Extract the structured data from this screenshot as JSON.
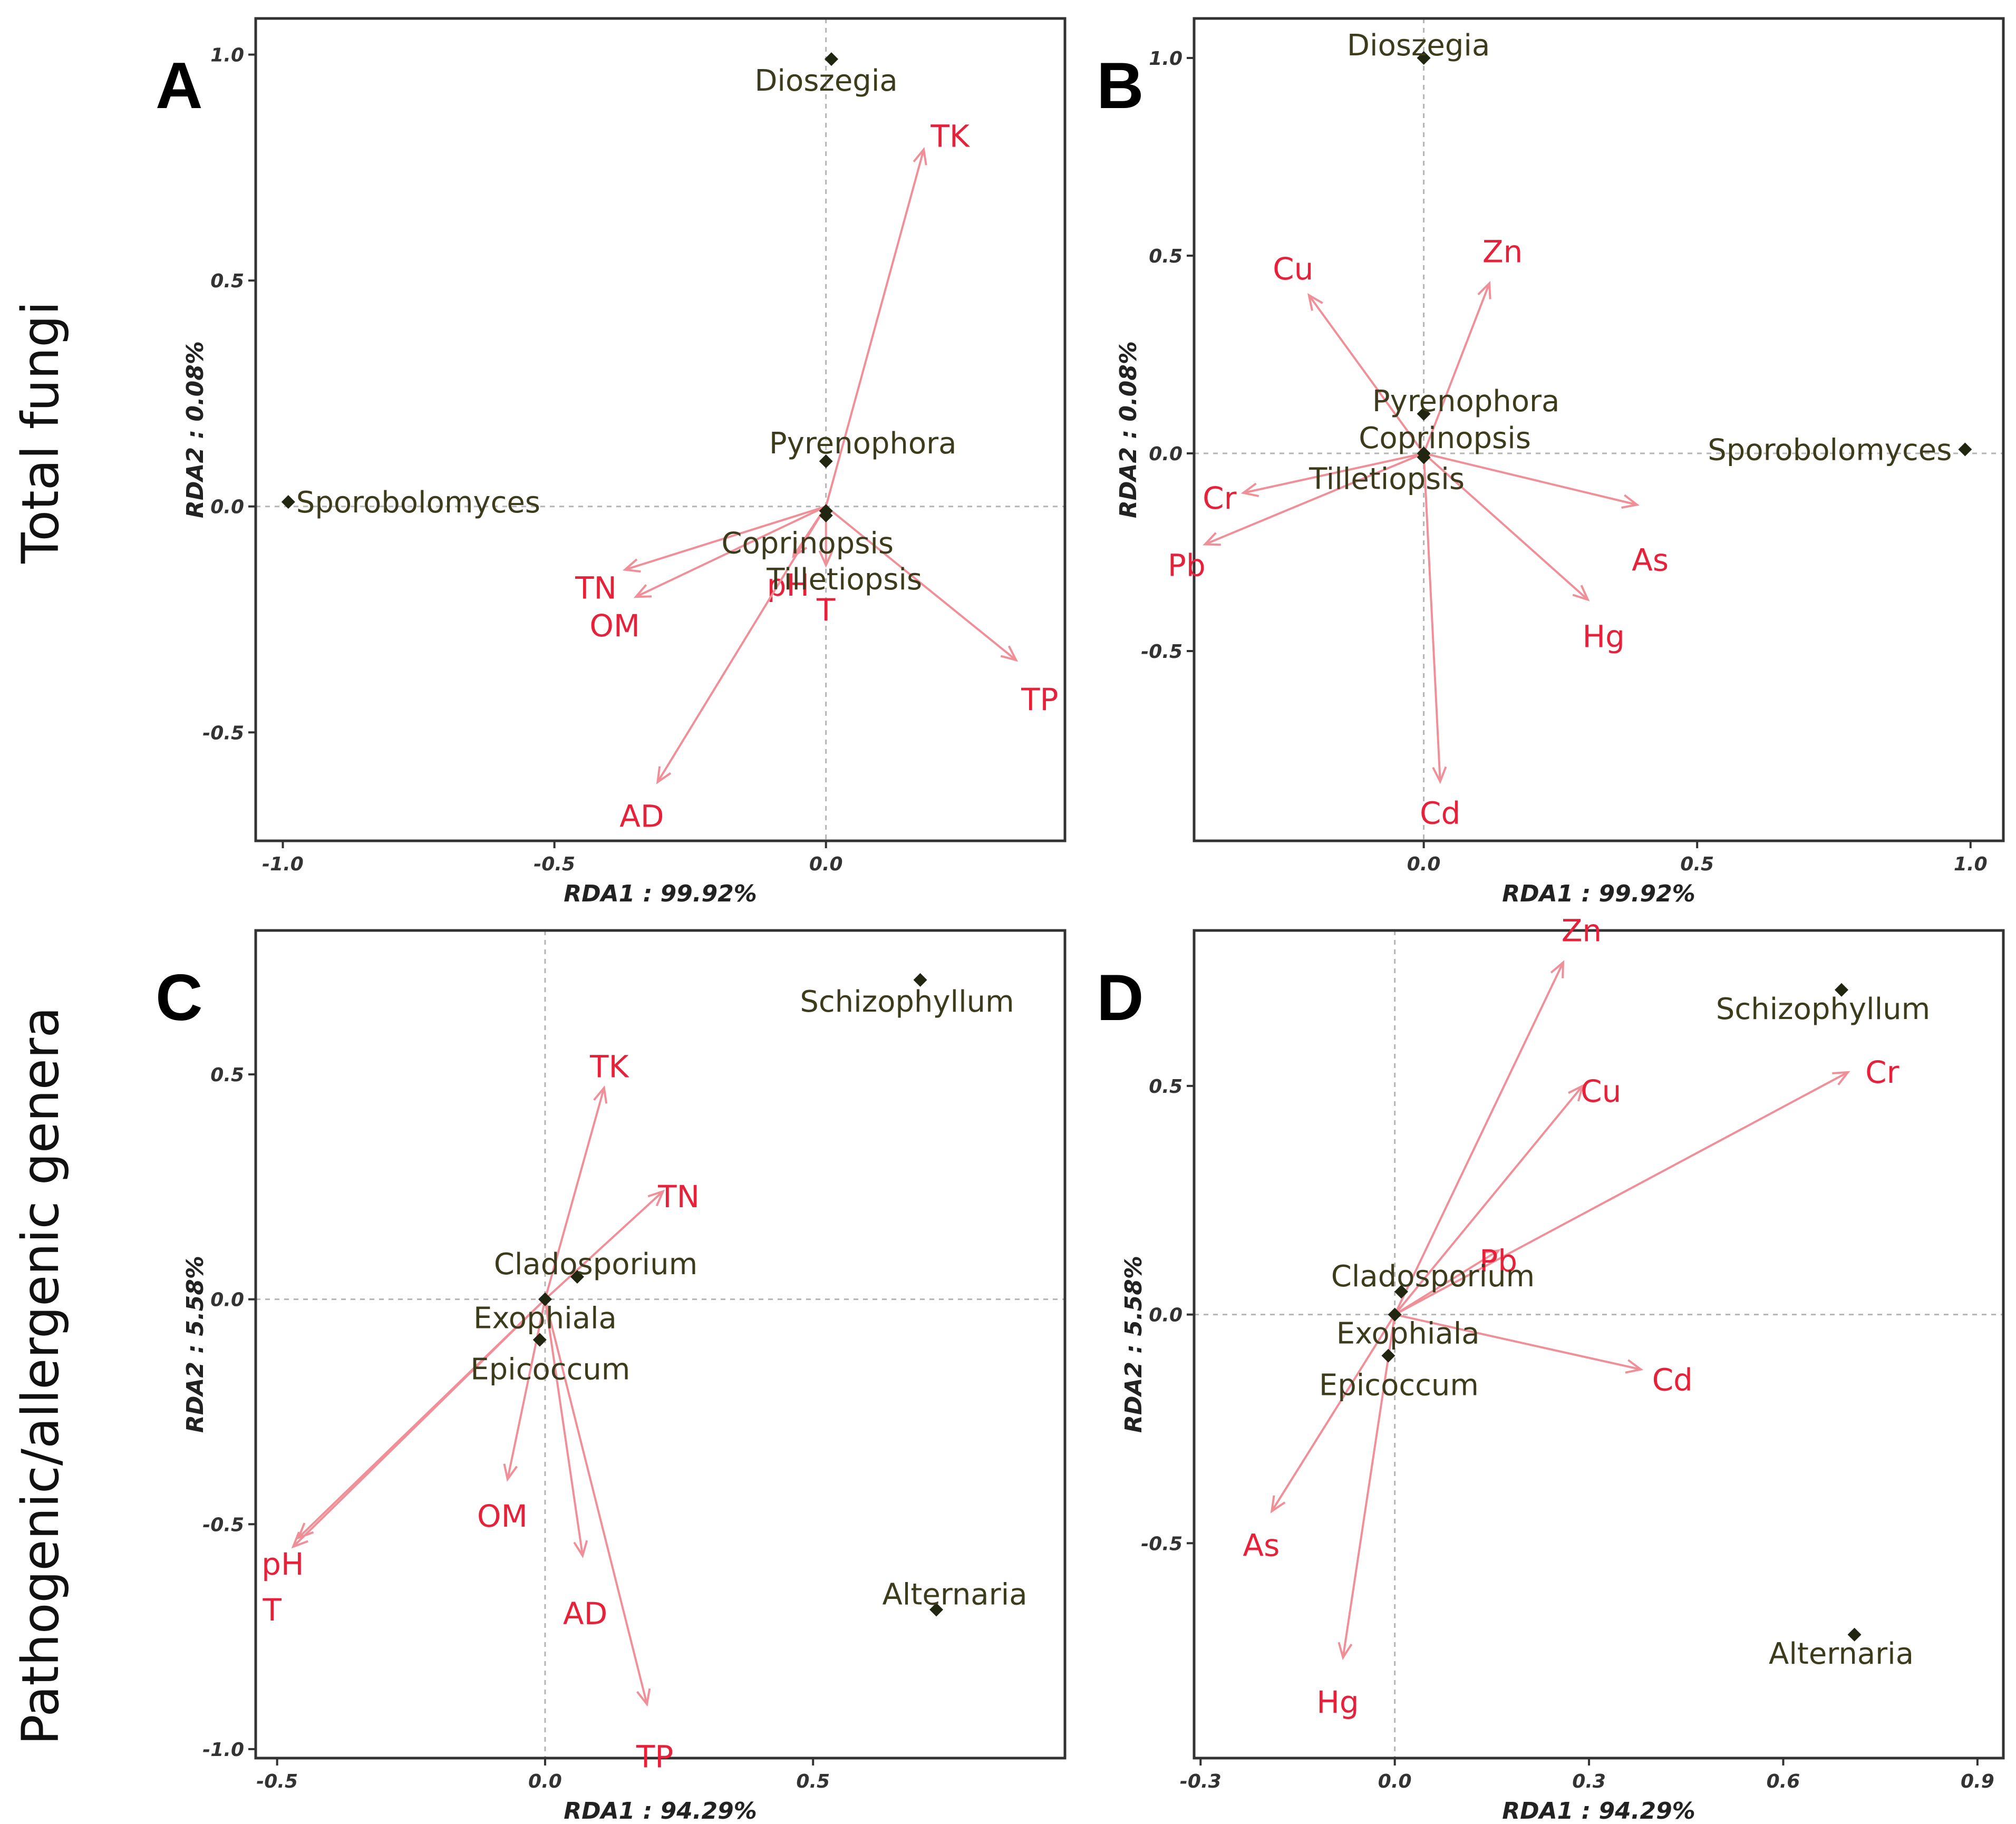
{
  "colors": {
    "vector": "#e8213a",
    "arrow_stroke": "#f08f98",
    "genus": "#3c3c1c",
    "point": "#202610"
  },
  "row_labels": [
    "Total fungi",
    "Pathogenic/allergenic genera"
  ],
  "chart_data": [
    {
      "type": "scatter",
      "subtype": "rda_biplot",
      "panel": "A",
      "xlabel": "RDA1 : 99.92%",
      "ylabel": "RDA2 : 0.08%",
      "xlim": [
        -1.05,
        0.44
      ],
      "ylim": [
        -0.74,
        1.08
      ],
      "xticks": [
        -1.0,
        -0.5,
        0.0
      ],
      "xtick_labels": [
        "-1.0",
        "-0.5",
        "0.0"
      ],
      "yticks": [
        -0.5,
        0.0,
        0.5,
        1.0
      ],
      "ytick_labels": [
        "-0.5",
        "0.0",
        "0.5",
        "1.0"
      ],
      "genera": [
        {
          "name": "Dioszegia",
          "x": 0.01,
          "y": 0.99
        },
        {
          "name": "Pyrenophora",
          "x": 0.0,
          "y": 0.1
        },
        {
          "name": "Coprinopsis",
          "x": 0.0,
          "y": -0.01
        },
        {
          "name": "Tilletiopsis",
          "x": 0.0,
          "y": -0.02
        },
        {
          "name": "Sporobolomyces",
          "x": -0.99,
          "y": 0.01
        }
      ],
      "vectors": [
        {
          "name": "TK",
          "x": 0.18,
          "y": 0.79
        },
        {
          "name": "TN",
          "x": -0.37,
          "y": -0.14
        },
        {
          "name": "OM",
          "x": -0.35,
          "y": -0.2
        },
        {
          "name": "pH",
          "x": -0.06,
          "y": -0.11
        },
        {
          "name": "T",
          "x": 0.0,
          "y": -0.13
        },
        {
          "name": "TP",
          "x": 0.35,
          "y": -0.34
        },
        {
          "name": "AD",
          "x": -0.31,
          "y": -0.61
        }
      ]
    },
    {
      "type": "scatter",
      "subtype": "rda_biplot",
      "panel": "B",
      "xlabel": "RDA1 : 99.92%",
      "ylabel": "RDA2 : 0.08%",
      "xlim": [
        -0.42,
        1.06
      ],
      "ylim": [
        -0.98,
        1.1
      ],
      "xticks": [
        0.0,
        0.5,
        1.0
      ],
      "xtick_labels": [
        "0.0",
        "0.5",
        "1.0"
      ],
      "yticks": [
        -0.5,
        0.0,
        0.5,
        1.0
      ],
      "ytick_labels": [
        "-0.5",
        "0.0",
        "0.5",
        "1.0"
      ],
      "genera": [
        {
          "name": "Dioszegia",
          "x": 0.0,
          "y": 1.0
        },
        {
          "name": "Pyrenophora",
          "x": 0.0,
          "y": 0.1
        },
        {
          "name": "Coprinopsis",
          "x": 0.0,
          "y": 0.0
        },
        {
          "name": "Tilletiopsis",
          "x": 0.0,
          "y": -0.01
        },
        {
          "name": "Sporobolomyces",
          "x": 0.99,
          "y": 0.01
        }
      ],
      "vectors": [
        {
          "name": "Cu",
          "x": -0.21,
          "y": 0.4
        },
        {
          "name": "Zn",
          "x": 0.12,
          "y": 0.43
        },
        {
          "name": "Cr",
          "x": -0.33,
          "y": -0.1
        },
        {
          "name": "Pb",
          "x": -0.4,
          "y": -0.23
        },
        {
          "name": "As",
          "x": 0.39,
          "y": -0.13
        },
        {
          "name": "Hg",
          "x": 0.3,
          "y": -0.37
        },
        {
          "name": "Cd",
          "x": 0.03,
          "y": -0.83
        }
      ]
    },
    {
      "type": "scatter",
      "subtype": "rda_biplot",
      "panel": "C",
      "xlabel": "RDA1 : 94.29%",
      "ylabel": "RDA2 : 5.58%",
      "xlim": [
        -0.54,
        0.97
      ],
      "ylim": [
        -1.02,
        0.82
      ],
      "xticks": [
        -0.5,
        0.0,
        0.5
      ],
      "xtick_labels": [
        "-0.5",
        "0.0",
        "0.5"
      ],
      "yticks": [
        -1.0,
        -0.5,
        0.0,
        0.5
      ],
      "ytick_labels": [
        "-1.0",
        "-0.5",
        "0.0",
        "0.5"
      ],
      "genera": [
        {
          "name": "Schizophyllum",
          "x": 0.7,
          "y": 0.71
        },
        {
          "name": "Cladosporium",
          "x": 0.06,
          "y": 0.05
        },
        {
          "name": "Exophiala",
          "x": 0.0,
          "y": 0.0
        },
        {
          "name": "Epicoccum",
          "x": -0.01,
          "y": -0.09
        },
        {
          "name": "Alternaria",
          "x": 0.73,
          "y": -0.69
        }
      ],
      "vectors": [
        {
          "name": "TK",
          "x": 0.11,
          "y": 0.47
        },
        {
          "name": "TN",
          "x": 0.22,
          "y": 0.24
        },
        {
          "name": "OM",
          "x": -0.07,
          "y": -0.4
        },
        {
          "name": "pH",
          "x": -0.46,
          "y": -0.53
        },
        {
          "name": "T",
          "x": -0.47,
          "y": -0.55
        },
        {
          "name": "AD",
          "x": 0.07,
          "y": -0.57
        },
        {
          "name": "TP",
          "x": 0.19,
          "y": -0.9
        }
      ]
    },
    {
      "type": "scatter",
      "subtype": "rda_biplot",
      "panel": "D",
      "xlabel": "RDA1 : 94.29%",
      "ylabel": "RDA2 : 5.58%",
      "xlim": [
        -0.31,
        0.94
      ],
      "ylim": [
        -0.97,
        0.84
      ],
      "xticks": [
        -0.3,
        0.0,
        0.3,
        0.6,
        0.9
      ],
      "xtick_labels": [
        "-0.3",
        "0.0",
        "0.3",
        "0.6",
        "0.9"
      ],
      "yticks": [
        -0.5,
        0.0,
        0.5
      ],
      "ytick_labels": [
        "-0.5",
        "0.0",
        "0.5"
      ],
      "genera": [
        {
          "name": "Schizophyllum",
          "x": 0.69,
          "y": 0.71
        },
        {
          "name": "Cladosporium",
          "x": 0.01,
          "y": 0.05
        },
        {
          "name": "Exophiala",
          "x": 0.0,
          "y": 0.0
        },
        {
          "name": "Epicoccum",
          "x": -0.01,
          "y": -0.09
        },
        {
          "name": "Alternaria",
          "x": 0.71,
          "y": -0.7
        }
      ],
      "vectors": [
        {
          "name": "Zn",
          "x": 0.26,
          "y": 0.77
        },
        {
          "name": "Cu",
          "x": 0.29,
          "y": 0.5
        },
        {
          "name": "Cr",
          "x": 0.7,
          "y": 0.53
        },
        {
          "name": "Pb",
          "x": 0.16,
          "y": 0.14
        },
        {
          "name": "Cd",
          "x": 0.38,
          "y": -0.12
        },
        {
          "name": "As",
          "x": -0.19,
          "y": -0.43
        },
        {
          "name": "Hg",
          "x": -0.08,
          "y": -0.75
        }
      ]
    }
  ]
}
